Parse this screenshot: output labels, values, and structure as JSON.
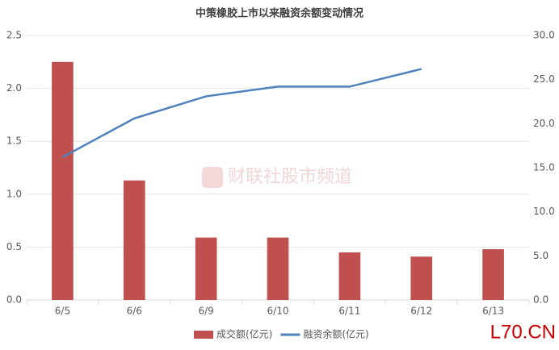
{
  "chart_data": {
    "type": "bar",
    "title": "中策橡胶上市以来融资余额变动情况",
    "categories": [
      "6/5",
      "6/6",
      "6/9",
      "6/10",
      "6/11",
      "6/12",
      "6/13"
    ],
    "series": [
      {
        "name": "成交额(亿元)",
        "type": "bar",
        "color": "#c0504d",
        "values": [
          2.25,
          1.13,
          0.59,
          0.59,
          0.45,
          0.41,
          0.48
        ]
      },
      {
        "name": "融资余额(亿元)",
        "type": "line",
        "axis": "y2",
        "color": "#4f81bd",
        "values": [
          16.2,
          20.6,
          23.1,
          24.2,
          24.2,
          26.2,
          null
        ]
      }
    ],
    "ylim": [
      0,
      2.5
    ],
    "yticks": [
      {
        "value": 0,
        "label": "0.0"
      },
      {
        "value": 0.5,
        "label": "0.5"
      },
      {
        "value": 1,
        "label": "1.0"
      },
      {
        "value": 1.5,
        "label": "1.5"
      },
      {
        "value": 2,
        "label": "2.0"
      },
      {
        "value": 2.5,
        "label": "2.5"
      }
    ],
    "y2lim": [
      0,
      30
    ],
    "y2ticks": [
      {
        "value": 0,
        "label": "0.0"
      },
      {
        "value": 5,
        "label": "5.0"
      },
      {
        "value": 10,
        "label": "10.0"
      },
      {
        "value": 15,
        "label": "15.0"
      },
      {
        "value": 20,
        "label": "20.0"
      },
      {
        "value": 25,
        "label": "25.0"
      },
      {
        "value": 30,
        "label": "30.0"
      }
    ],
    "grid": true,
    "legend": "bottom",
    "watermark": "财联社股市频道",
    "site_label": "L70.CN"
  }
}
